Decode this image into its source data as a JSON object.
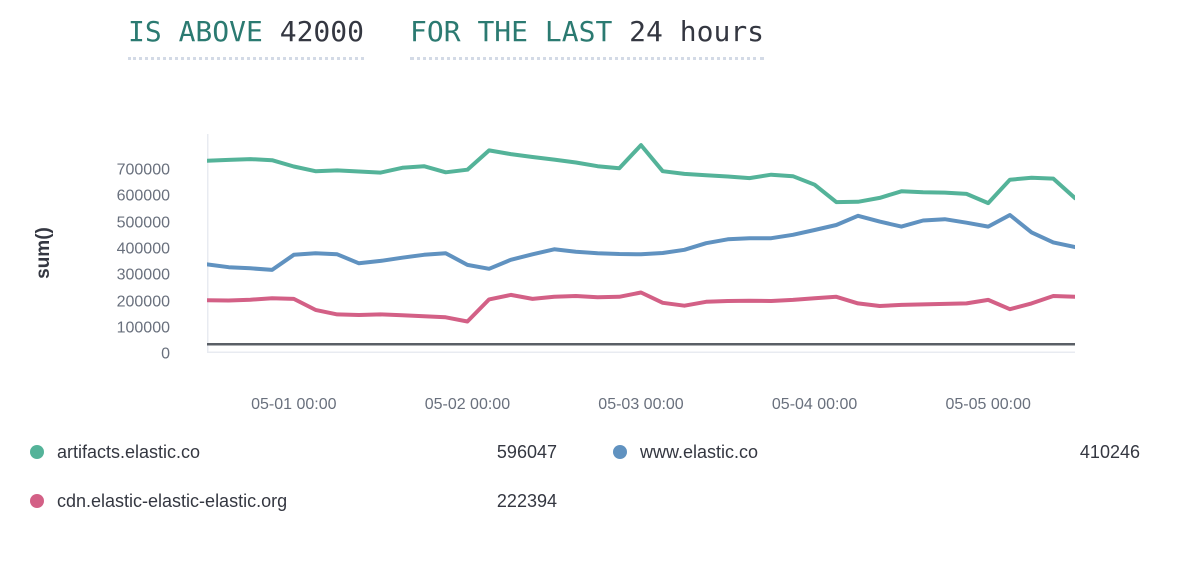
{
  "expression": {
    "threshold": {
      "keyword": "IS ABOVE",
      "value": "42000"
    },
    "window": {
      "keyword": "FOR THE LAST",
      "value": "24 hours"
    }
  },
  "colors": {
    "expression_keyword": "#2B7A71",
    "expression_value": "#343741",
    "axis_text": "#69707D",
    "plot_border": "#E8EBF1",
    "threshold_line": "#5A5F66",
    "series_green": "#54B399",
    "series_blue": "#6092C0",
    "series_pink": "#D36086"
  },
  "chart_data": {
    "type": "line",
    "title": "",
    "xlabel": "",
    "ylabel": "sum()",
    "ylim": [
      0,
      854000
    ],
    "grid": false,
    "legend_position": "bottom",
    "y_ticks": [
      0,
      100000,
      200000,
      300000,
      400000,
      500000,
      600000,
      700000
    ],
    "x_interval_hours": 3,
    "x_start": "04-30 12:00",
    "x_ticks": [
      {
        "index": 4,
        "label": "05-01 00:00"
      },
      {
        "index": 12,
        "label": "05-02 00:00"
      },
      {
        "index": 20,
        "label": "05-03 00:00"
      },
      {
        "index": 28,
        "label": "05-04 00:00"
      },
      {
        "index": 36,
        "label": "05-05 00:00"
      }
    ],
    "threshold_value": 42000,
    "series": [
      {
        "id": "cdn-elastic-elastic-elastic-org",
        "name": "cdn.elastic-elastic-elastic.org",
        "color": "#D36086",
        "current": 222394,
        "values": [
          209000,
          208000,
          211000,
          216000,
          214000,
          172000,
          155000,
          153000,
          155000,
          152000,
          148000,
          144000,
          128000,
          212000,
          229000,
          214000,
          222000,
          225000,
          220000,
          222000,
          238000,
          199000,
          188000,
          203000,
          206000,
          207000,
          206000,
          210000,
          216000,
          222000,
          197000,
          187000,
          191000,
          193000,
          195000,
          197000,
          210000,
          175000,
          197000,
          225000,
          222394
        ]
      },
      {
        "id": "www-elastic-co",
        "name": "www.elastic.co",
        "color": "#6092C0",
        "current": 410246,
        "values": [
          345000,
          334000,
          330000,
          324000,
          381000,
          387000,
          383000,
          349000,
          358000,
          370000,
          381000,
          387000,
          343000,
          328000,
          362000,
          383000,
          402000,
          393000,
          387000,
          384000,
          383000,
          388000,
          400000,
          425000,
          440000,
          444000,
          444000,
          457000,
          475000,
          494000,
          529000,
          507000,
          488000,
          511000,
          516000,
          503000,
          488000,
          532000,
          466000,
          428000,
          410246
        ]
      },
      {
        "id": "artifacts-elastic-co",
        "name": "artifacts.elastic.co",
        "color": "#54B399",
        "current": 596047,
        "values": [
          738000,
          741000,
          744000,
          740000,
          716000,
          698000,
          701000,
          697000,
          693000,
          711000,
          717000,
          694000,
          704000,
          777000,
          763000,
          752000,
          742000,
          731000,
          717000,
          709000,
          797000,
          698000,
          688000,
          683000,
          678000,
          672000,
          685000,
          679000,
          647000,
          581000,
          582000,
          597000,
          622000,
          618000,
          617000,
          612000,
          577000,
          666000,
          673000,
          670000,
          596047
        ]
      }
    ]
  },
  "legend": {
    "items": [
      {
        "id": "artifacts-elastic-co",
        "label": "artifacts.elastic.co",
        "value": "596047",
        "color": "#54B399"
      },
      {
        "id": "www-elastic-co",
        "label": "www.elastic.co",
        "value": "410246",
        "color": "#6092C0"
      },
      {
        "id": "cdn-elastic-elastic-elastic-org",
        "label": "cdn.elastic-elastic-elastic.org",
        "value": "222394",
        "color": "#D36086"
      }
    ]
  }
}
